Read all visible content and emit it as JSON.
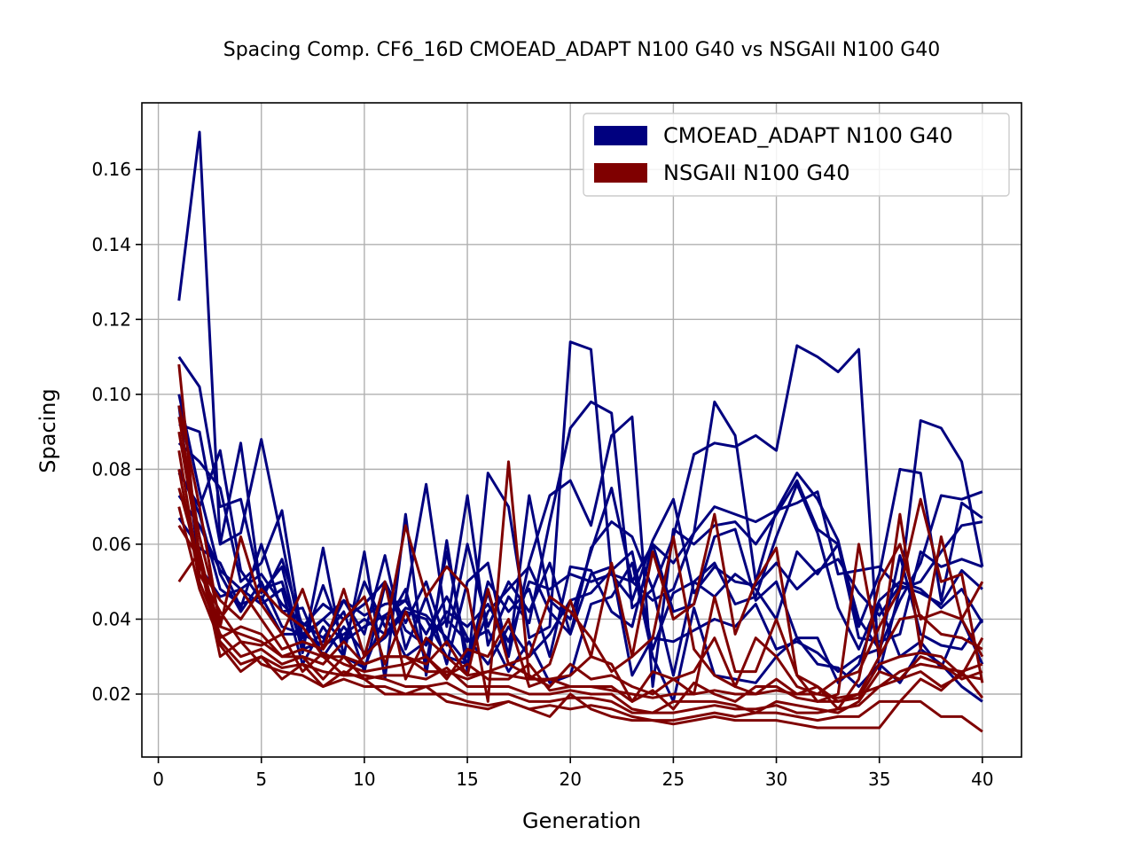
{
  "chart_data": {
    "type": "line",
    "title": "Spacing Comp. CF6_16D CMOEAD_ADAPT N100 G40 vs NSGAII N100 G40",
    "xlabel": "Generation",
    "ylabel": "Spacing",
    "xlim": [
      -0.8,
      41.9
    ],
    "ylim": [
      0.0032,
      0.1778
    ],
    "xticks": [
      0,
      5,
      10,
      15,
      20,
      25,
      30,
      35,
      40
    ],
    "yticks": [
      0.02,
      0.04,
      0.06,
      0.08,
      0.1,
      0.12,
      0.14,
      0.16
    ],
    "ytick_labels": [
      "0.02",
      "0.04",
      "0.06",
      "0.08",
      "0.10",
      "0.12",
      "0.14",
      "0.16"
    ],
    "grid": true,
    "legend_position": "top-right",
    "legend": [
      {
        "label": "CMOEAD_ADAPT N100 G40",
        "color": "#00007f"
      },
      {
        "label": "NSGAII N100 G40",
        "color": "#7f0000"
      }
    ],
    "x": [
      1,
      2,
      3,
      4,
      5,
      6,
      7,
      8,
      9,
      10,
      11,
      12,
      13,
      14,
      15,
      16,
      17,
      18,
      19,
      20,
      21,
      22,
      23,
      24,
      25,
      26,
      27,
      28,
      29,
      30,
      31,
      32,
      33,
      34,
      35,
      36,
      37,
      38,
      39,
      40
    ],
    "groups": [
      {
        "legend_index": 0,
        "color": "#00007f",
        "runs": [
          [
            0.125,
            0.17,
            0.06,
            0.087,
            0.047,
            0.054,
            0.031,
            0.059,
            0.03,
            0.058,
            0.024,
            0.068,
            0.025,
            0.061,
            0.026,
            0.079,
            0.07,
            0.035,
            0.038,
            0.114,
            0.112,
            0.052,
            0.05,
            0.06,
            0.055,
            0.063,
            0.07,
            0.068,
            0.066,
            0.069,
            0.071,
            0.074,
            0.052,
            0.053,
            0.054,
            0.048,
            0.05,
            0.058,
            0.065,
            0.066
          ],
          [
            0.11,
            0.102,
            0.07,
            0.072,
            0.048,
            0.05,
            0.032,
            0.034,
            0.045,
            0.041,
            0.044,
            0.045,
            0.076,
            0.038,
            0.073,
            0.033,
            0.046,
            0.039,
            0.066,
            0.091,
            0.098,
            0.095,
            0.043,
            0.048,
            0.062,
            0.084,
            0.087,
            0.086,
            0.089,
            0.085,
            0.113,
            0.11,
            0.106,
            0.112,
            0.026,
            0.048,
            0.093,
            0.091,
            0.082,
            0.054
          ],
          [
            0.092,
            0.09,
            0.06,
            0.063,
            0.088,
            0.061,
            0.033,
            0.049,
            0.034,
            0.05,
            0.038,
            0.048,
            0.028,
            0.058,
            0.03,
            0.047,
            0.03,
            0.073,
            0.045,
            0.04,
            0.058,
            0.075,
            0.05,
            0.045,
            0.048,
            0.063,
            0.098,
            0.089,
            0.05,
            0.069,
            0.079,
            0.072,
            0.061,
            0.038,
            0.052,
            0.08,
            0.079,
            0.045,
            0.071,
            0.067
          ],
          [
            0.087,
            0.082,
            0.075,
            0.05,
            0.055,
            0.069,
            0.035,
            0.04,
            0.045,
            0.036,
            0.057,
            0.032,
            0.046,
            0.028,
            0.05,
            0.055,
            0.03,
            0.055,
            0.073,
            0.077,
            0.065,
            0.089,
            0.094,
            0.022,
            0.064,
            0.06,
            0.065,
            0.066,
            0.06,
            0.068,
            0.077,
            0.064,
            0.06,
            0.04,
            0.032,
            0.045,
            0.055,
            0.073,
            0.072,
            0.074
          ],
          [
            0.079,
            0.07,
            0.085,
            0.053,
            0.045,
            0.056,
            0.038,
            0.044,
            0.04,
            0.044,
            0.05,
            0.039,
            0.05,
            0.033,
            0.06,
            0.038,
            0.05,
            0.042,
            0.055,
            0.036,
            0.059,
            0.066,
            0.062,
            0.048,
            0.025,
            0.05,
            0.055,
            0.044,
            0.046,
            0.062,
            0.076,
            0.063,
            0.043,
            0.032,
            0.045,
            0.05,
            0.048,
            0.043,
            0.048,
            0.039
          ],
          [
            0.073,
            0.065,
            0.053,
            0.048,
            0.052,
            0.044,
            0.039,
            0.035,
            0.042,
            0.026,
            0.049,
            0.037,
            0.033,
            0.042,
            0.038,
            0.044,
            0.034,
            0.05,
            0.048,
            0.052,
            0.05,
            0.052,
            0.045,
            0.061,
            0.072,
            0.047,
            0.054,
            0.05,
            0.049,
            0.055,
            0.048,
            0.053,
            0.056,
            0.047,
            0.041,
            0.049,
            0.047,
            0.044,
            0.053,
            0.048
          ],
          [
            0.067,
            0.059,
            0.055,
            0.043,
            0.06,
            0.042,
            0.043,
            0.03,
            0.038,
            0.031,
            0.035,
            0.042,
            0.04,
            0.03,
            0.028,
            0.05,
            0.042,
            0.048,
            0.03,
            0.054,
            0.053,
            0.042,
            0.038,
            0.06,
            0.042,
            0.044,
            0.062,
            0.064,
            0.045,
            0.05,
            0.035,
            0.035,
            0.023,
            0.028,
            0.044,
            0.03,
            0.034,
            0.027,
            0.04,
            0.028
          ],
          [
            0.097,
            0.054,
            0.046,
            0.048,
            0.044,
            0.048,
            0.028,
            0.038,
            0.03,
            0.027,
            0.041,
            0.03,
            0.034,
            0.04,
            0.034,
            0.037,
            0.026,
            0.034,
            0.023,
            0.025,
            0.044,
            0.046,
            0.055,
            0.03,
            0.018,
            0.043,
            0.025,
            0.024,
            0.023,
            0.03,
            0.035,
            0.028,
            0.027,
            0.022,
            0.028,
            0.023,
            0.032,
            0.028,
            0.022,
            0.018
          ],
          [
            0.1,
            0.074,
            0.052,
            0.042,
            0.05,
            0.038,
            0.036,
            0.033,
            0.036,
            0.04,
            0.036,
            0.043,
            0.041,
            0.035,
            0.028,
            0.042,
            0.048,
            0.054,
            0.042,
            0.036,
            0.052,
            0.054,
            0.025,
            0.035,
            0.034,
            0.037,
            0.04,
            0.038,
            0.044,
            0.032,
            0.034,
            0.031,
            0.026,
            0.03,
            0.032,
            0.057,
            0.036,
            0.033,
            0.032,
            0.04
          ],
          [
            0.08,
            0.068,
            0.048,
            0.044,
            0.046,
            0.036,
            0.036,
            0.04,
            0.034,
            0.038,
            0.041,
            0.045,
            0.036,
            0.046,
            0.035,
            0.028,
            0.038,
            0.03,
            0.036,
            0.045,
            0.047,
            0.053,
            0.058,
            0.032,
            0.047,
            0.05,
            0.046,
            0.052,
            0.048,
            0.04,
            0.058,
            0.052,
            0.06,
            0.035,
            0.034,
            0.036,
            0.058,
            0.054,
            0.056,
            0.054
          ]
        ]
      },
      {
        "legend_index": 1,
        "color": "#7f0000",
        "runs": [
          [
            0.108,
            0.054,
            0.045,
            0.04,
            0.048,
            0.042,
            0.038,
            0.03,
            0.025,
            0.03,
            0.036,
            0.065,
            0.046,
            0.054,
            0.048,
            0.018,
            0.082,
            0.024,
            0.028,
            0.045,
            0.03,
            0.055,
            0.03,
            0.058,
            0.04,
            0.044,
            0.068,
            0.036,
            0.05,
            0.059,
            0.025,
            0.018,
            0.02,
            0.06,
            0.03,
            0.068,
            0.032,
            0.062,
            0.04,
            0.05
          ],
          [
            0.097,
            0.07,
            0.038,
            0.062,
            0.044,
            0.036,
            0.048,
            0.032,
            0.048,
            0.03,
            0.05,
            0.024,
            0.035,
            0.03,
            0.025,
            0.048,
            0.028,
            0.03,
            0.046,
            0.042,
            0.035,
            0.026,
            0.03,
            0.035,
            0.062,
            0.032,
            0.025,
            0.022,
            0.035,
            0.03,
            0.022,
            0.02,
            0.024,
            0.026,
            0.038,
            0.048,
            0.072,
            0.05,
            0.052,
            0.023
          ],
          [
            0.094,
            0.062,
            0.04,
            0.048,
            0.04,
            0.032,
            0.034,
            0.032,
            0.04,
            0.046,
            0.028,
            0.042,
            0.03,
            0.024,
            0.032,
            0.03,
            0.04,
            0.022,
            0.024,
            0.025,
            0.03,
            0.028,
            0.018,
            0.026,
            0.024,
            0.02,
            0.046,
            0.026,
            0.026,
            0.04,
            0.025,
            0.022,
            0.016,
            0.024,
            0.05,
            0.06,
            0.04,
            0.042,
            0.04,
            0.03
          ],
          [
            0.09,
            0.058,
            0.035,
            0.038,
            0.036,
            0.03,
            0.03,
            0.028,
            0.034,
            0.028,
            0.03,
            0.03,
            0.028,
            0.034,
            0.025,
            0.026,
            0.028,
            0.025,
            0.022,
            0.028,
            0.024,
            0.025,
            0.022,
            0.02,
            0.024,
            0.026,
            0.035,
            0.022,
            0.02,
            0.024,
            0.02,
            0.022,
            0.018,
            0.02,
            0.03,
            0.04,
            0.041,
            0.036,
            0.035,
            0.032
          ],
          [
            0.085,
            0.052,
            0.042,
            0.034,
            0.033,
            0.036,
            0.026,
            0.031,
            0.028,
            0.026,
            0.027,
            0.028,
            0.03,
            0.025,
            0.028,
            0.024,
            0.024,
            0.028,
            0.021,
            0.022,
            0.022,
            0.022,
            0.018,
            0.021,
            0.016,
            0.023,
            0.02,
            0.018,
            0.022,
            0.022,
            0.019,
            0.018,
            0.018,
            0.019,
            0.028,
            0.03,
            0.031,
            0.03,
            0.025,
            0.035
          ],
          [
            0.08,
            0.05,
            0.036,
            0.03,
            0.032,
            0.028,
            0.03,
            0.024,
            0.03,
            0.024,
            0.025,
            0.025,
            0.024,
            0.027,
            0.022,
            0.022,
            0.022,
            0.02,
            0.02,
            0.021,
            0.02,
            0.02,
            0.016,
            0.015,
            0.018,
            0.018,
            0.018,
            0.017,
            0.015,
            0.018,
            0.017,
            0.016,
            0.015,
            0.018,
            0.026,
            0.024,
            0.03,
            0.028,
            0.024,
            0.026
          ],
          [
            0.07,
            0.048,
            0.034,
            0.028,
            0.03,
            0.027,
            0.028,
            0.026,
            0.025,
            0.025,
            0.024,
            0.022,
            0.022,
            0.023,
            0.02,
            0.02,
            0.02,
            0.018,
            0.018,
            0.019,
            0.019,
            0.018,
            0.015,
            0.015,
            0.015,
            0.016,
            0.017,
            0.016,
            0.016,
            0.017,
            0.015,
            0.015,
            0.016,
            0.017,
            0.022,
            0.024,
            0.026,
            0.022,
            0.025,
            0.024
          ],
          [
            0.065,
            0.056,
            0.03,
            0.034,
            0.028,
            0.026,
            0.025,
            0.022,
            0.024,
            0.022,
            0.022,
            0.02,
            0.02,
            0.02,
            0.018,
            0.017,
            0.018,
            0.016,
            0.017,
            0.016,
            0.017,
            0.016,
            0.014,
            0.013,
            0.013,
            0.014,
            0.015,
            0.014,
            0.015,
            0.015,
            0.014,
            0.013,
            0.014,
            0.014,
            0.018,
            0.018,
            0.024,
            0.021,
            0.026,
            0.019
          ],
          [
            0.05,
            0.058,
            0.033,
            0.026,
            0.03,
            0.024,
            0.028,
            0.022,
            0.026,
            0.024,
            0.02,
            0.02,
            0.022,
            0.018,
            0.017,
            0.016,
            0.018,
            0.016,
            0.014,
            0.02,
            0.016,
            0.014,
            0.013,
            0.013,
            0.012,
            0.013,
            0.014,
            0.013,
            0.013,
            0.013,
            0.012,
            0.011,
            0.011,
            0.011,
            0.011,
            0.018,
            0.018,
            0.014,
            0.014,
            0.01
          ],
          [
            0.075,
            0.055,
            0.038,
            0.036,
            0.034,
            0.03,
            0.032,
            0.03,
            0.03,
            0.028,
            0.03,
            0.03,
            0.026,
            0.026,
            0.024,
            0.026,
            0.025,
            0.024,
            0.024,
            0.022,
            0.022,
            0.021,
            0.02,
            0.019,
            0.02,
            0.02,
            0.021,
            0.02,
            0.02,
            0.021,
            0.02,
            0.02,
            0.019,
            0.02,
            0.022,
            0.026,
            0.028,
            0.027,
            0.026,
            0.028
          ]
        ]
      }
    ]
  }
}
